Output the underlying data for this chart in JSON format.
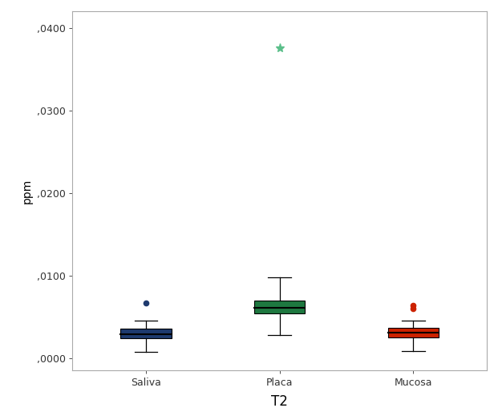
{
  "title": "",
  "xlabel": "T2",
  "ylabel": "ppm",
  "categories": [
    "Saliva",
    "Placa",
    "Mucosa"
  ],
  "ylim": [
    -0.0015,
    0.042
  ],
  "yticks": [
    0.0,
    0.01,
    0.02,
    0.03,
    0.04
  ],
  "ytick_labels": [
    ",0000",
    ",0100",
    ",0200",
    ",0300",
    ",0400"
  ],
  "boxes": [
    {
      "label": "Saliva",
      "color": "#1e3a6e",
      "edge_color": "#000000",
      "median": 0.00295,
      "q1": 0.0024,
      "q3": 0.0036,
      "whisker_low": 0.0008,
      "whisker_high": 0.0046,
      "outliers": [
        0.0067
      ],
      "outlier_marker": "o",
      "outlier_color": "#1e3a6e",
      "extreme_outliers": [],
      "extreme_color": "#1e3a6e"
    },
    {
      "label": "Placa",
      "color": "#1e7840",
      "edge_color": "#000000",
      "median": 0.0061,
      "q1": 0.0054,
      "q3": 0.007,
      "whisker_low": 0.0028,
      "whisker_high": 0.0098,
      "outliers": [],
      "outlier_marker": "o",
      "outlier_color": "#1e7840",
      "extreme_outliers": [
        0.0375
      ],
      "extreme_color": "#5bbf8a"
    },
    {
      "label": "Mucosa",
      "color": "#cc2200",
      "edge_color": "#000000",
      "median": 0.0031,
      "q1": 0.0025,
      "q3": 0.0037,
      "whisker_low": 0.0009,
      "whisker_high": 0.0046,
      "outliers": [
        0.0064,
        0.006
      ],
      "outlier_marker": "o",
      "outlier_color": "#cc2200",
      "extreme_outliers": [],
      "extreme_color": "#cc2200"
    }
  ],
  "background_color": "#ffffff",
  "xlabel_fontsize": 12,
  "ylabel_fontsize": 10,
  "tick_fontsize": 9,
  "box_width": 0.38,
  "cap_ratio": 0.45
}
